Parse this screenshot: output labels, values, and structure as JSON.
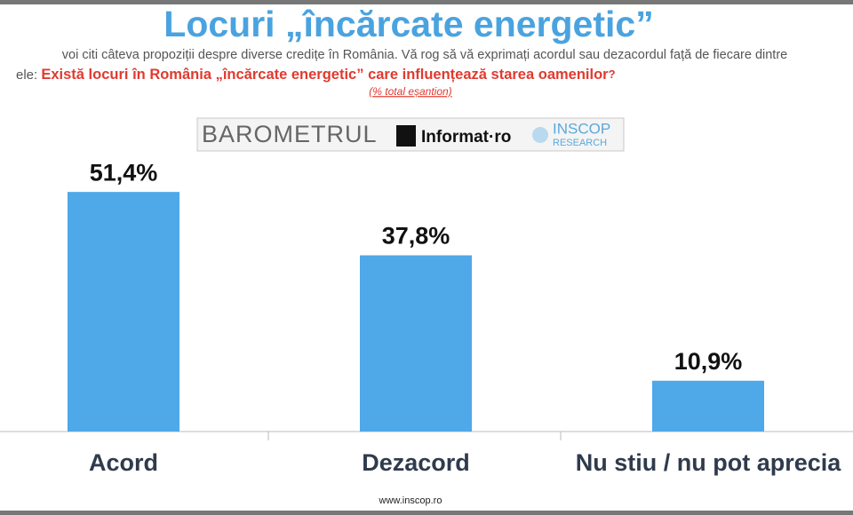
{
  "chart_data": {
    "type": "bar",
    "title": "Locuri „încărcate energetic”",
    "subtitle": "voi citi câteva propoziții despre diverse credițe în România. Vă rog să vă exprimați acordul sau dezacordul față de fiecare dintre",
    "subtitle_lead": "ele:",
    "question": "Există locuri în România „încărcate energetic” care influențează starea oamenilor",
    "question_mark": "?",
    "note": "(% total eșantion)",
    "categories": [
      "Acord",
      "Dezacord",
      "Nu stiu / nu pot aprecia"
    ],
    "values": [
      51.4,
      37.8,
      10.9
    ],
    "value_labels": [
      "51,4%",
      "37,8%",
      "10,9%"
    ],
    "color": "#4fa8e8"
  },
  "logo": {
    "barometer": "BAROMETRUL",
    "partner": "Informat·ro",
    "brand": "INSCOP",
    "brand_sub": "RESEARCH"
  },
  "footer": "www.inscop.ro"
}
